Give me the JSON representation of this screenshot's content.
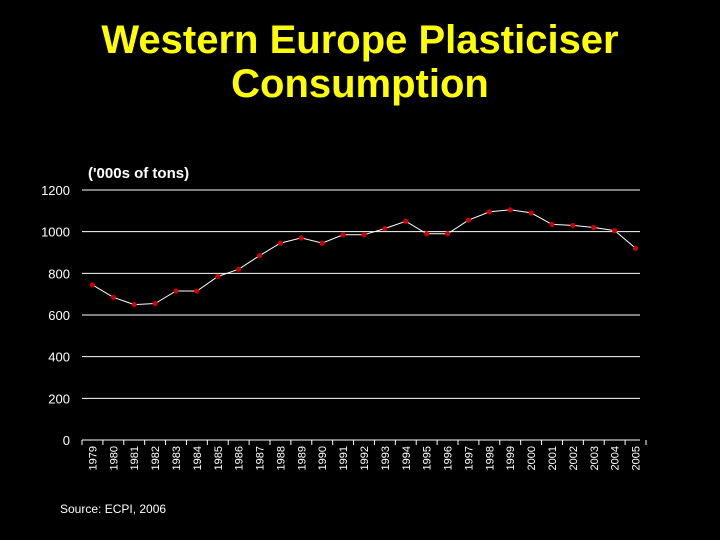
{
  "title_line1": "Western Europe Plasticiser",
  "title_line2": "Consumption",
  "source": "Source: ECPI, 2006",
  "colors": {
    "background": "#000000",
    "title": "#ffff00",
    "text": "#ffffff",
    "grid": "#ffffff",
    "line": "#ffffff",
    "marker": "#cc0000"
  },
  "chart_data": {
    "type": "line",
    "title": "",
    "ylabel": "('000s of tons)",
    "xlabel": "",
    "ylim": [
      0,
      1200
    ],
    "yticks": [
      0,
      200,
      400,
      600,
      800,
      1000,
      1200
    ],
    "grid": true,
    "categories": [
      "1979",
      "1980",
      "1981",
      "1982",
      "1983",
      "1984",
      "1985",
      "1986",
      "1987",
      "1988",
      "1989",
      "1990",
      "1991",
      "1992",
      "1993",
      "1994",
      "1995",
      "1996",
      "1997",
      "1998",
      "1999",
      "2000",
      "2001",
      "2002",
      "2003",
      "2004",
      "2005"
    ],
    "series": [
      {
        "values": [
          745,
          685,
          650,
          655,
          715,
          715,
          785,
          820,
          885,
          945,
          970,
          945,
          985,
          985,
          1015,
          1050,
          990,
          990,
          1055,
          1095,
          1105,
          1090,
          1035,
          1030,
          1020,
          1005,
          920
        ]
      }
    ]
  }
}
